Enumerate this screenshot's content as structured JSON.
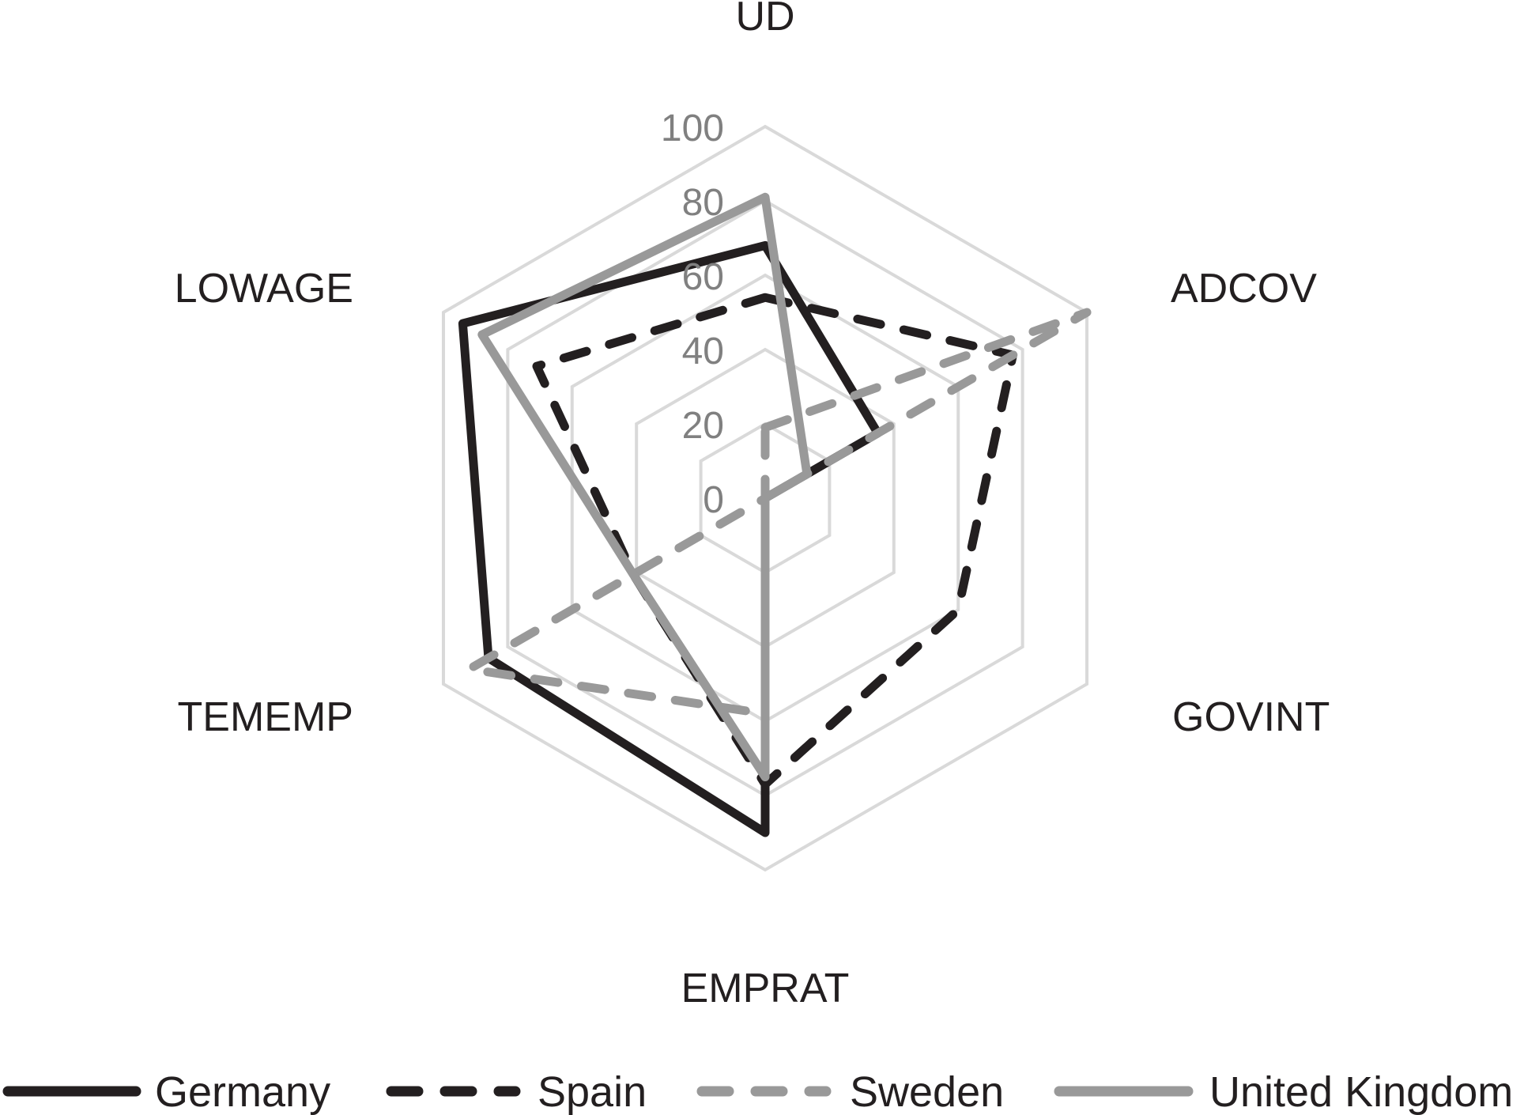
{
  "chart_data": {
    "type": "radar",
    "axes": [
      "UD",
      "ADCOV",
      "GOVINT",
      "EMPRAT",
      "TEMEMP",
      "LOWAGE"
    ],
    "ticks": [
      "0",
      "20",
      "40",
      "60",
      "80",
      "100"
    ],
    "range": [
      0,
      100
    ],
    "series": [
      {
        "name": "Germany",
        "values": [
          68,
          35,
          0,
          90,
          86,
          94
        ],
        "color": "#231f20",
        "dash": "solid"
      },
      {
        "name": "Spain",
        "values": [
          54,
          77,
          60,
          77,
          41,
          71
        ],
        "color": "#231f20",
        "dash": "dashed"
      },
      {
        "name": "Sweden",
        "values": [
          19,
          100,
          0,
          58,
          92,
          0
        ],
        "color": "#999999",
        "dash": "dashed"
      },
      {
        "name": "United Kingdom",
        "values": [
          81,
          13,
          0,
          75,
          41,
          88
        ],
        "color": "#999999",
        "dash": "solid"
      }
    ],
    "grid_color": "#d9d9d9",
    "legend_position": "bottom"
  }
}
